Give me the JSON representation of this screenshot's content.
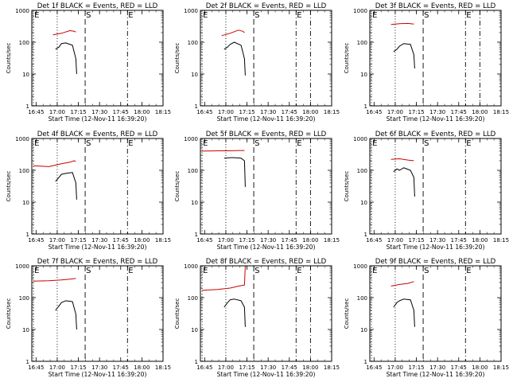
{
  "chart_data": [
    {
      "type": "line",
      "title": "Det 1f BLACK = Events, RED = LLD",
      "xlabel": "Start Time (12-Nov-11 16:39:20)",
      "ylabel": "Counts/sec",
      "yscale": "log",
      "ylim": [
        1,
        1000
      ],
      "xlim": [
        16.7,
        18.25
      ],
      "x_ticks": [
        "16:45",
        "17:00",
        "17:15",
        "17:30",
        "17:45",
        "18:00",
        "18:15"
      ],
      "y_ticks": [
        "1",
        "10",
        "100",
        "1000"
      ],
      "markers": [
        {
          "label": "E",
          "x": 16.72,
          "style": "dotted"
        },
        {
          "label": "",
          "x": 17.0,
          "style": "dotted"
        },
        {
          "label": "S",
          "x": 17.33,
          "style": "dashed"
        },
        {
          "label": "E",
          "x": 17.83,
          "style": "dashdot"
        }
      ],
      "series": [
        {
          "color": "#cc0000",
          "x": [
            16.95,
            17.05,
            17.15,
            17.2,
            17.22
          ],
          "y": [
            170,
            190,
            230,
            220,
            210
          ]
        },
        {
          "color": "#000000",
          "x": [
            16.98,
            17.02,
            17.05,
            17.1,
            17.18,
            17.22,
            17.23
          ],
          "y": [
            60,
            70,
            90,
            95,
            80,
            30,
            10
          ]
        }
      ]
    },
    {
      "type": "line",
      "title": "Det 2f BLACK = Events, RED = LLD",
      "xlabel": "Start Time (12-Nov-11 16:39:20)",
      "ylabel": "Counts/sec",
      "yscale": "log",
      "ylim": [
        1,
        1000
      ],
      "xlim": [
        16.7,
        18.25
      ],
      "x_ticks": [
        "16:45",
        "17:00",
        "17:15",
        "17:30",
        "17:45",
        "18:00",
        "18:15"
      ],
      "y_ticks": [
        "1",
        "10",
        "100",
        "1000"
      ],
      "markers": [
        {
          "label": "E",
          "x": 16.72,
          "style": "dotted"
        },
        {
          "label": "",
          "x": 17.0,
          "style": "dotted"
        },
        {
          "label": "S",
          "x": 17.33,
          "style": "dashed"
        },
        {
          "label": "E",
          "x": 17.83,
          "style": "dashdot"
        },
        {
          "label": "",
          "x": 18.0,
          "style": "dashdot"
        }
      ],
      "series": [
        {
          "color": "#cc0000",
          "x": [
            16.95,
            17.05,
            17.15,
            17.2,
            17.22
          ],
          "y": [
            160,
            190,
            240,
            220,
            200
          ]
        },
        {
          "color": "#000000",
          "x": [
            16.98,
            17.02,
            17.05,
            17.1,
            17.18,
            17.22,
            17.23
          ],
          "y": [
            60,
            70,
            85,
            100,
            80,
            30,
            9
          ]
        }
      ]
    },
    {
      "type": "line",
      "title": "Det 3f BLACK = Events, RED = LLD",
      "xlabel": "Start Time (12-Nov-11 16:39:20)",
      "ylabel": "Counts/sec",
      "yscale": "log",
      "ylim": [
        1,
        1000
      ],
      "xlim": [
        16.7,
        18.25
      ],
      "x_ticks": [
        "16:45",
        "17:00",
        "17:15",
        "17:30",
        "17:45",
        "18:00",
        "18:15"
      ],
      "y_ticks": [
        "1",
        "10",
        "100",
        "1000"
      ],
      "markers": [
        {
          "label": "E",
          "x": 16.72,
          "style": "dotted"
        },
        {
          "label": "",
          "x": 17.0,
          "style": "dotted"
        },
        {
          "label": "S",
          "x": 17.33,
          "style": "dashed"
        },
        {
          "label": "E",
          "x": 17.83,
          "style": "dashdot"
        },
        {
          "label": "",
          "x": 18.0,
          "style": "dashdot"
        }
      ],
      "series": [
        {
          "color": "#cc0000",
          "x": [
            16.95,
            17.05,
            17.15,
            17.22
          ],
          "y": [
            360,
            380,
            390,
            370
          ]
        },
        {
          "color": "#000000",
          "x": [
            16.98,
            17.02,
            17.05,
            17.1,
            17.18,
            17.22,
            17.23
          ],
          "y": [
            50,
            60,
            75,
            90,
            85,
            40,
            15
          ]
        }
      ]
    },
    {
      "type": "line",
      "title": "Det 4f BLACK = Events, RED = LLD",
      "xlabel": "Start Time (12-Nov-11 16:39:20)",
      "ylabel": "Counts/sec",
      "yscale": "log",
      "ylim": [
        1,
        1000
      ],
      "xlim": [
        16.7,
        18.25
      ],
      "x_ticks": [
        "16:45",
        "17:00",
        "17:15",
        "17:30",
        "17:45",
        "18:00",
        "18:15"
      ],
      "y_ticks": [
        "1",
        "10",
        "100",
        "1000"
      ],
      "markers": [
        {
          "label": "E",
          "x": 16.72,
          "style": "dotted"
        },
        {
          "label": "",
          "x": 17.0,
          "style": "dotted"
        },
        {
          "label": "S",
          "x": 17.33,
          "style": "dashed"
        },
        {
          "label": "E",
          "x": 17.83,
          "style": "dashdot"
        }
      ],
      "series": [
        {
          "color": "#cc0000",
          "x": [
            16.72,
            16.9,
            17.05,
            17.15,
            17.2,
            17.22
          ],
          "y": [
            140,
            130,
            160,
            180,
            200,
            190
          ]
        },
        {
          "color": "#000000",
          "x": [
            16.98,
            17.02,
            17.05,
            17.1,
            17.18,
            17.22,
            17.23
          ],
          "y": [
            45,
            60,
            75,
            80,
            85,
            40,
            12
          ]
        }
      ]
    },
    {
      "type": "line",
      "title": "Det 5f BLACK = Events, RED = LLD",
      "xlabel": "Start Time (12-Nov-11 16:39:20)",
      "ylabel": "Counts/sec",
      "yscale": "log",
      "ylim": [
        1,
        1000
      ],
      "xlim": [
        16.7,
        18.25
      ],
      "x_ticks": [
        "16:45",
        "17:00",
        "17:15",
        "17:30",
        "17:45",
        "18:00",
        "18:15"
      ],
      "y_ticks": [
        "1",
        "10",
        "100",
        "1000"
      ],
      "markers": [
        {
          "label": "E",
          "x": 16.72,
          "style": "dotted"
        },
        {
          "label": "",
          "x": 17.0,
          "style": "dotted"
        },
        {
          "label": "S",
          "x": 17.33,
          "style": "dashed"
        },
        {
          "label": "E",
          "x": 17.83,
          "style": "dashdot"
        },
        {
          "label": "",
          "x": 18.0,
          "style": "dashdot"
        }
      ],
      "series": [
        {
          "color": "#cc0000",
          "x": [
            16.72,
            16.9,
            17.05,
            17.15,
            17.22
          ],
          "y": [
            400,
            410,
            410,
            420,
            420
          ]
        },
        {
          "color": "#000000",
          "x": [
            16.98,
            17.05,
            17.1,
            17.18,
            17.22,
            17.23
          ],
          "y": [
            240,
            250,
            250,
            240,
            200,
            30
          ]
        }
      ]
    },
    {
      "type": "line",
      "title": "Det 6f BLACK = Events, RED = LLD",
      "xlabel": "Start Time (12-Nov-11 16:39:20)",
      "ylabel": "Counts/sec",
      "yscale": "log",
      "ylim": [
        1,
        1000
      ],
      "xlim": [
        16.7,
        18.25
      ],
      "x_ticks": [
        "16:45",
        "17:00",
        "17:15",
        "17:30",
        "17:45",
        "18:00",
        "18:15"
      ],
      "y_ticks": [
        "1",
        "10",
        "100",
        "1000"
      ],
      "markers": [
        {
          "label": "E",
          "x": 16.72,
          "style": "dotted"
        },
        {
          "label": "",
          "x": 17.0,
          "style": "dotted"
        },
        {
          "label": "S",
          "x": 17.33,
          "style": "dashed"
        },
        {
          "label": "E",
          "x": 17.83,
          "style": "dashdot"
        }
      ],
      "series": [
        {
          "color": "#cc0000",
          "x": [
            16.95,
            17.05,
            17.15,
            17.22
          ],
          "y": [
            220,
            230,
            210,
            200
          ]
        },
        {
          "color": "#000000",
          "x": [
            16.98,
            17.02,
            17.05,
            17.1,
            17.18,
            17.22,
            17.23
          ],
          "y": [
            90,
            110,
            100,
            120,
            100,
            60,
            15
          ]
        }
      ]
    },
    {
      "type": "line",
      "title": "Det 7f BLACK = Events, RED = LLD",
      "xlabel": "Start Time (12-Nov-11 16:39:20)",
      "ylabel": "Counts/sec",
      "yscale": "log",
      "ylim": [
        1,
        1000
      ],
      "xlim": [
        16.7,
        18.25
      ],
      "x_ticks": [
        "16:45",
        "17:00",
        "17:15",
        "17:30",
        "17:45",
        "18:00",
        "18:15"
      ],
      "y_ticks": [
        "1",
        "10",
        "100",
        "1000"
      ],
      "markers": [
        {
          "label": "E",
          "x": 16.72,
          "style": "dotted"
        },
        {
          "label": "",
          "x": 17.0,
          "style": "dotted"
        },
        {
          "label": "S",
          "x": 17.33,
          "style": "dashed"
        },
        {
          "label": "E",
          "x": 17.83,
          "style": "dashdot"
        }
      ],
      "series": [
        {
          "color": "#cc0000",
          "x": [
            16.72,
            16.9,
            17.05,
            17.15,
            17.22
          ],
          "y": [
            330,
            340,
            360,
            380,
            400
          ]
        },
        {
          "color": "#000000",
          "x": [
            16.98,
            17.02,
            17.05,
            17.1,
            17.18,
            17.22,
            17.23
          ],
          "y": [
            40,
            55,
            70,
            80,
            75,
            30,
            10
          ]
        }
      ]
    },
    {
      "type": "line",
      "title": "Det 8f BLACK = Events, RED = LLD",
      "xlabel": "Start Time (12-Nov-11 16:39:20)",
      "ylabel": "Counts/sec",
      "yscale": "log",
      "ylim": [
        1,
        1000
      ],
      "xlim": [
        16.7,
        18.25
      ],
      "x_ticks": [
        "16:45",
        "17:00",
        "17:15",
        "17:30",
        "17:45",
        "18:00",
        "18:15"
      ],
      "y_ticks": [
        "1",
        "10",
        "100",
        "1000"
      ],
      "markers": [
        {
          "label": "E",
          "x": 16.72,
          "style": "dotted"
        },
        {
          "label": "",
          "x": 17.0,
          "style": "dotted"
        },
        {
          "label": "S",
          "x": 17.33,
          "style": "dashed"
        },
        {
          "label": "E",
          "x": 17.83,
          "style": "dashdot"
        },
        {
          "label": "",
          "x": 18.0,
          "style": "dashdot"
        }
      ],
      "series": [
        {
          "color": "#cc0000",
          "x": [
            16.72,
            16.9,
            17.05,
            17.15,
            17.22,
            17.23
          ],
          "y": [
            170,
            180,
            200,
            230,
            250,
            1000
          ]
        },
        {
          "color": "#000000",
          "x": [
            16.98,
            17.02,
            17.05,
            17.1,
            17.18,
            17.22,
            17.23
          ],
          "y": [
            50,
            70,
            85,
            90,
            80,
            50,
            12
          ]
        }
      ]
    },
    {
      "type": "line",
      "title": "Det 9f BLACK = Events, RED = LLD",
      "xlabel": "Start Time (12-Nov-11 16:39:20)",
      "ylabel": "Counts/sec",
      "yscale": "log",
      "ylim": [
        1,
        1000
      ],
      "xlim": [
        16.7,
        18.25
      ],
      "x_ticks": [
        "16:45",
        "17:00",
        "17:15",
        "17:30",
        "17:45",
        "18:00",
        "18:15"
      ],
      "y_ticks": [
        "1",
        "10",
        "100",
        "1000"
      ],
      "markers": [
        {
          "label": "E",
          "x": 16.72,
          "style": "dotted"
        },
        {
          "label": "",
          "x": 17.0,
          "style": "dotted"
        },
        {
          "label": "S",
          "x": 17.33,
          "style": "dashed"
        },
        {
          "label": "E",
          "x": 17.83,
          "style": "dashdot"
        }
      ],
      "series": [
        {
          "color": "#cc0000",
          "x": [
            16.95,
            17.05,
            17.15,
            17.22
          ],
          "y": [
            230,
            260,
            280,
            320
          ]
        },
        {
          "color": "#000000",
          "x": [
            16.98,
            17.02,
            17.05,
            17.1,
            17.18,
            17.22,
            17.23
          ],
          "y": [
            50,
            70,
            80,
            90,
            85,
            40,
            12
          ]
        }
      ]
    }
  ]
}
